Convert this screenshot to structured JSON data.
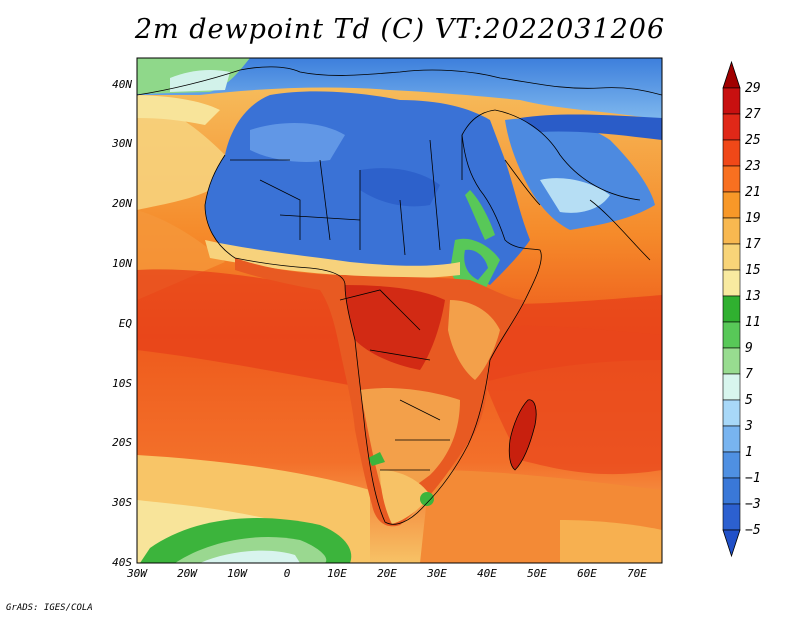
{
  "title": "2m dewpoint Td (C) VT:2022031206",
  "credit": "GrADS: IGES/COLA",
  "map": {
    "lon_range": [
      -30,
      75
    ],
    "lat_range": [
      -40,
      45
    ],
    "lon_ticks": [
      "30W",
      "20W",
      "10W",
      "0",
      "10E",
      "20E",
      "30E",
      "40E",
      "50E",
      "60E",
      "70E"
    ],
    "lat_ticks": [
      "40N",
      "30N",
      "20N",
      "10N",
      "EQ",
      "10S",
      "20S",
      "30S",
      "40S"
    ]
  },
  "colorbar": {
    "labels": [
      "29",
      "27",
      "25",
      "23",
      "21",
      "19",
      "17",
      "15",
      "13",
      "11",
      "9",
      "7",
      "5",
      "3",
      "1",
      "−1",
      "−3",
      "−5"
    ],
    "colors": [
      "#a00000",
      "#c81010",
      "#e02818",
      "#f04818",
      "#f87020",
      "#f89828",
      "#f8b850",
      "#f8d478",
      "#f8eaa0",
      "#30b030",
      "#58c858",
      "#98dc90",
      "#d8f6ee",
      "#a8d8f8",
      "#78b4f0",
      "#4f90e2",
      "#3a78d8",
      "#2c60d0",
      "#2050c8"
    ]
  },
  "regions": {
    "ocean_color": "#f0561c",
    "sahara_color": "#3a72d6",
    "sahel_color": "#f7b04a",
    "green_color": "#36b236"
  }
}
